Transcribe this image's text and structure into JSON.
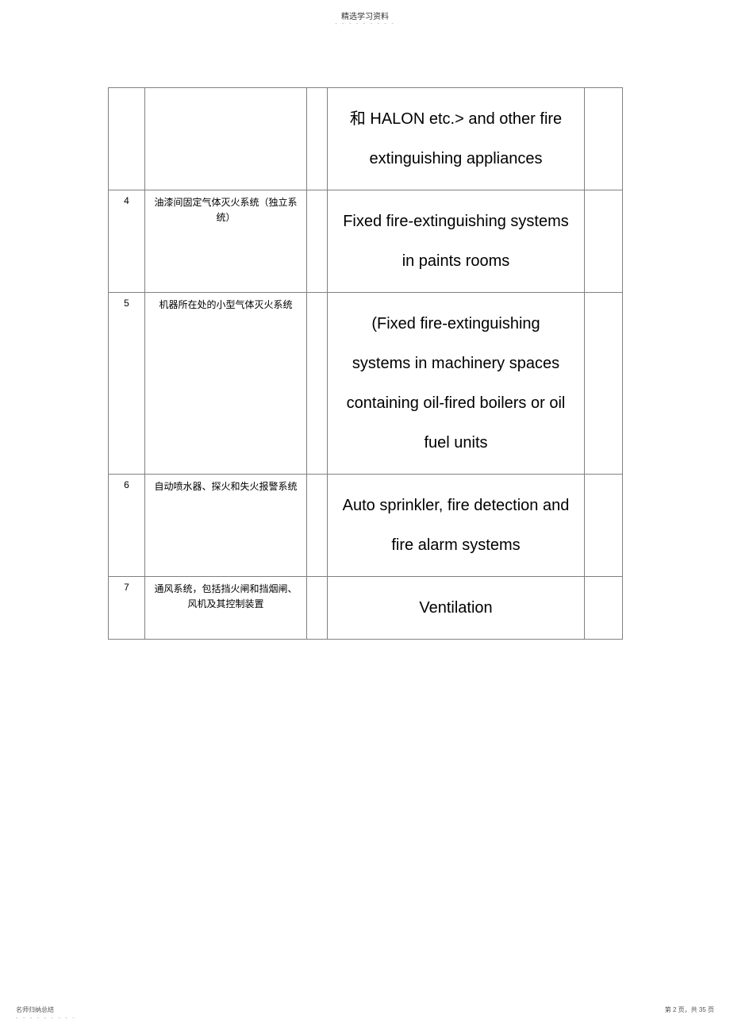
{
  "header": {
    "title": "精选学习资料",
    "dashes": "- - - - - - - - -"
  },
  "rows": [
    {
      "num": "",
      "cn": "",
      "en": "和 HALON etc.> and other fire extinguishing appliances"
    },
    {
      "num": "4",
      "cn": "油漆间固定气体灭火系统（独立系统）",
      "en": "Fixed fire-extinguishing systems in paints rooms"
    },
    {
      "num": "5",
      "cn": "机器所在处的小型气体灭火系统",
      "en": "(Fixed fire-extinguishing systems in machinery spaces containing oil-fired boilers or oil fuel units"
    },
    {
      "num": "6",
      "cn": "自动喷水器、探火和失火报警系统",
      "en": "Auto sprinkler, fire detection and fire alarm systems"
    },
    {
      "num": "7",
      "cn": "通风系统，包括挡火闸和挡烟闸、风机及其控制装置",
      "en": "Ventilation"
    }
  ],
  "footer": {
    "left": "名师归纳总结",
    "dashes": "- - - - - - - - -",
    "right": "第 2 页，共 35 页"
  }
}
